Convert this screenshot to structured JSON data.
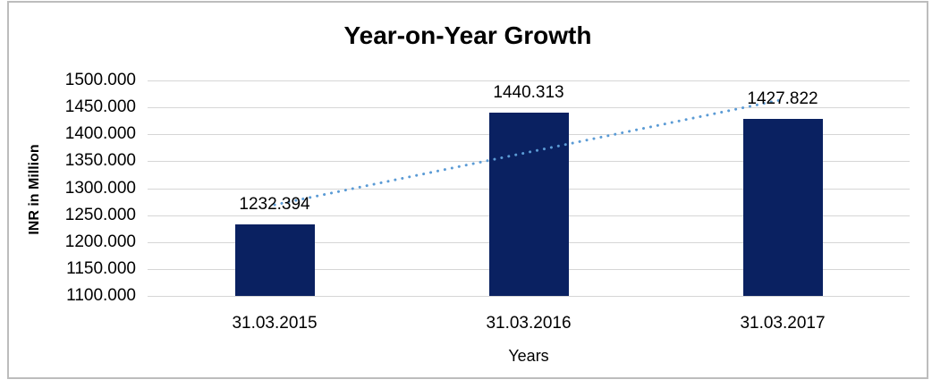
{
  "title": "Year-on-Year Growth",
  "y_axis_title": "INR in Million",
  "x_axis_title": "Years",
  "chart_data": {
    "type": "bar",
    "title": "Year-on-Year Growth",
    "xlabel": "Years",
    "ylabel": "INR in Million",
    "categories": [
      "31.03.2015",
      "31.03.2016",
      "31.03.2017"
    ],
    "values": [
      1232.394,
      1440.313,
      1427.822
    ],
    "data_labels": [
      "1232.394",
      "1440.313",
      "1427.822"
    ],
    "ylim": [
      1100,
      1500
    ],
    "ytick_step": 50,
    "ytick_labels": [
      "1100.000",
      "1150.000",
      "1200.000",
      "1250.000",
      "1300.000",
      "1350.000",
      "1400.000",
      "1450.000",
      "1500.000"
    ],
    "grid": true,
    "legend": "none",
    "trendline": {
      "type": "linear",
      "style": "dotted",
      "color": "#5b9bd5"
    },
    "colors": {
      "bar": "#0a2161",
      "gridline": "#d6d6d6",
      "frame_border": "#bdbdbd",
      "text": "#000000"
    }
  }
}
